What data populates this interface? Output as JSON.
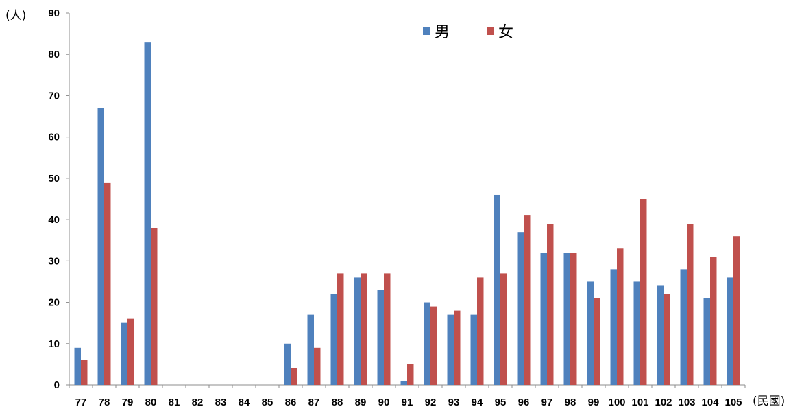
{
  "chart_data": {
    "type": "bar",
    "y_unit_label": "(人)",
    "x_unit_label": "(民國)",
    "ylim": [
      0,
      90
    ],
    "yticks": [
      0,
      10,
      20,
      30,
      40,
      50,
      60,
      70,
      80,
      90
    ],
    "grid": false,
    "legend_position": "top-center",
    "categories": [
      "77",
      "78",
      "79",
      "80",
      "81",
      "82",
      "83",
      "84",
      "85",
      "86",
      "87",
      "88",
      "89",
      "90",
      "91",
      "92",
      "93",
      "94",
      "95",
      "96",
      "97",
      "98",
      "99",
      "100",
      "101",
      "102",
      "103",
      "104",
      "105"
    ],
    "series": [
      {
        "name": "男",
        "color": "#4F81BD",
        "values": [
          9,
          67,
          15,
          83,
          0,
          0,
          0,
          0,
          0,
          10,
          17,
          22,
          26,
          23,
          1,
          20,
          17,
          17,
          46,
          37,
          32,
          32,
          25,
          28,
          25,
          24,
          28,
          21,
          26
        ]
      },
      {
        "name": "女",
        "color": "#C0504D",
        "values": [
          6,
          49,
          16,
          38,
          0,
          0,
          0,
          0,
          0,
          4,
          9,
          27,
          27,
          27,
          5,
          19,
          18,
          26,
          27,
          41,
          39,
          32,
          21,
          33,
          45,
          22,
          39,
          31,
          36
        ]
      }
    ]
  }
}
